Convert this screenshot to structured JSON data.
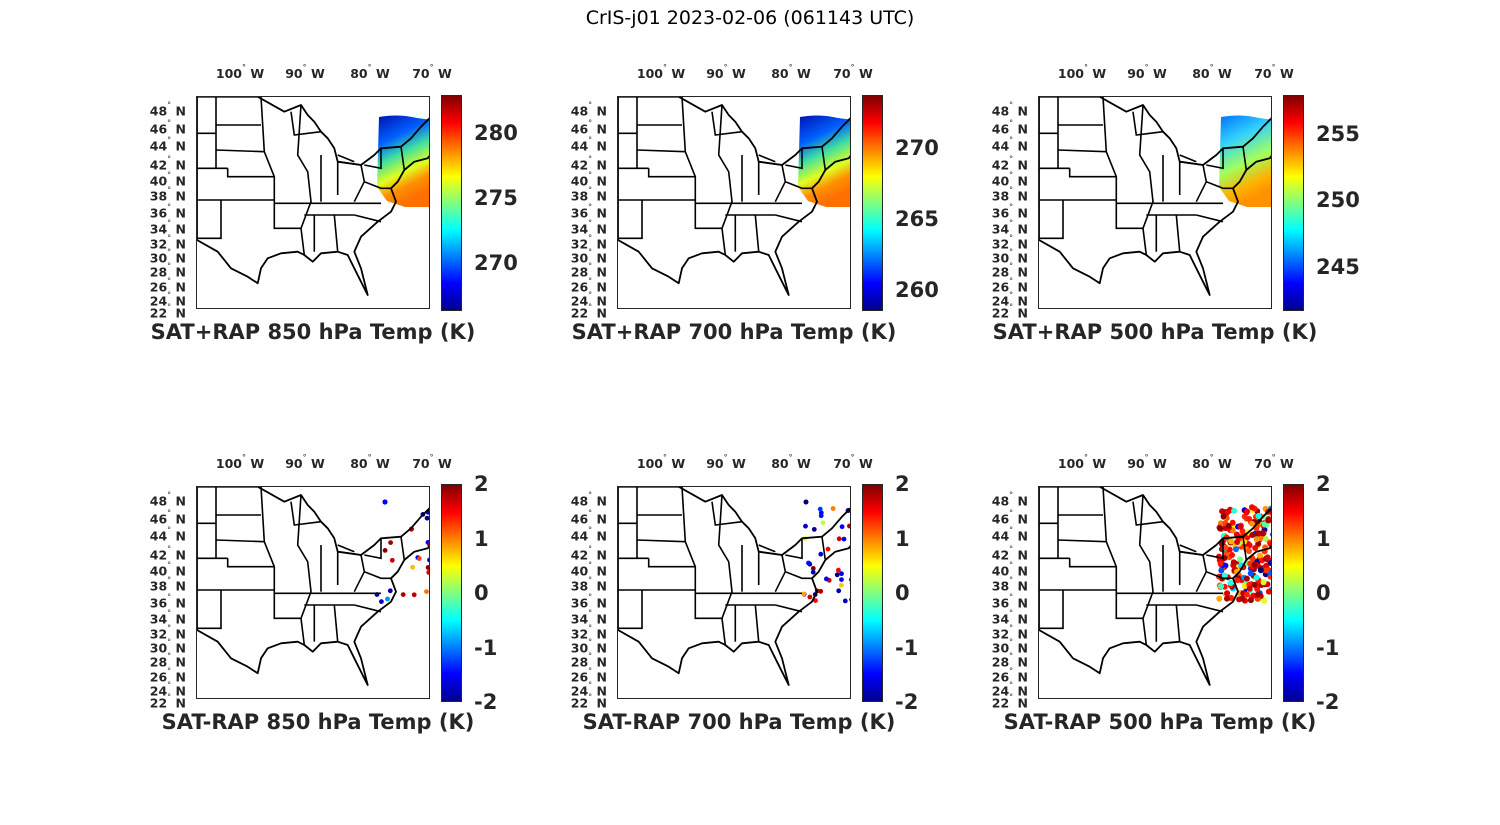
{
  "figure_title": "CrIS-j01 2023-02-06 (061143 UTC)",
  "lon_labels": [
    "100",
    "90",
    "80",
    "70"
  ],
  "lon_hemisphere": "W",
  "lat_labels": [
    "48",
    "46",
    "44",
    "42",
    "40",
    "38",
    "36",
    "34",
    "32",
    "30",
    "28",
    "26",
    "24",
    "22"
  ],
  "lat_hemisphere": "N",
  "degree_symbol": "°",
  "panels": [
    {
      "title": "SAT+RAP 850 hPa Temp (K)",
      "type": "field",
      "clim": [
        266.3,
        282.9
      ],
      "ticks": [
        "270",
        "275",
        "280"
      ],
      "colormap": "jet"
    },
    {
      "title": "SAT+RAP 700 hPa Temp (K)",
      "type": "field",
      "clim": [
        258.5,
        273.7
      ],
      "ticks": [
        "260",
        "265",
        "270"
      ],
      "colormap": "jet"
    },
    {
      "title": "SAT+RAP 500 hPa Temp (K)",
      "type": "field",
      "clim": [
        241.7,
        257.9
      ],
      "ticks": [
        "245",
        "250",
        "255"
      ],
      "colormap": "jet"
    },
    {
      "title": "SAT-RAP 850 hPa Temp (K)",
      "type": "diff",
      "clim": [
        -2,
        2
      ],
      "ticks": [
        "-2",
        "-1",
        "0",
        "1",
        "2"
      ],
      "colormap": "jet"
    },
    {
      "title": "SAT-RAP 700 hPa Temp (K)",
      "type": "diff",
      "clim": [
        -2,
        2
      ],
      "ticks": [
        "-2",
        "-1",
        "0",
        "1",
        "2"
      ],
      "colormap": "jet"
    },
    {
      "title": "SAT-RAP 500 hPa Temp (K)",
      "type": "diff",
      "clim": [
        -2,
        2
      ],
      "ticks": [
        "-2",
        "-1",
        "0",
        "1",
        "2"
      ],
      "colormap": "jet"
    }
  ]
}
